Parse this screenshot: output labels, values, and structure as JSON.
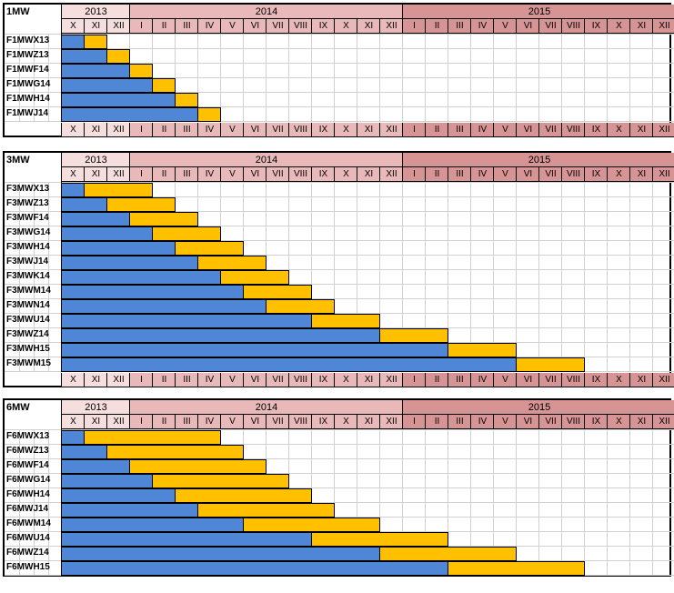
{
  "years": [
    {
      "label": "2013",
      "start": 0,
      "span": 3,
      "color": "#f6dede"
    },
    {
      "label": "2014",
      "start": 3,
      "span": 12,
      "color": "#e9b9b9"
    },
    {
      "label": "2015",
      "start": 15,
      "span": 12,
      "color": "#d79494"
    }
  ],
  "months": [
    "X",
    "XI",
    "XII",
    "I",
    "II",
    "III",
    "IV",
    "V",
    "VI",
    "VII",
    "VIII",
    "IX",
    "X",
    "XI",
    "XII",
    "I",
    "II",
    "III",
    "IV",
    "V",
    "VI",
    "VII",
    "VIII",
    "IX",
    "X",
    "XI",
    "XII"
  ],
  "colors": {
    "blue": "#4f86d6",
    "yellow": "#ffc000",
    "grid": "#d0d0d0"
  },
  "panels": [
    {
      "title": "1MW",
      "show_bottom_header": true,
      "rows": [
        {
          "label": "F1MWX13",
          "blue_months": 1,
          "yellow_months": 1
        },
        {
          "label": "F1MWZ13",
          "blue_months": 2,
          "yellow_months": 1
        },
        {
          "label": "F1MWF14",
          "blue_months": 3,
          "yellow_months": 1
        },
        {
          "label": "F1MWG14",
          "blue_months": 4,
          "yellow_months": 1
        },
        {
          "label": "F1MWH14",
          "blue_months": 5,
          "yellow_months": 1
        },
        {
          "label": "F1MWJ14",
          "blue_months": 6,
          "yellow_months": 1
        }
      ]
    },
    {
      "title": "3MW",
      "show_bottom_header": true,
      "rows": [
        {
          "label": "F3MWX13",
          "blue_months": 1,
          "yellow_months": 3
        },
        {
          "label": "F3MWZ13",
          "blue_months": 2,
          "yellow_months": 3
        },
        {
          "label": "F3MWF14",
          "blue_months": 3,
          "yellow_months": 3
        },
        {
          "label": "F3MWG14",
          "blue_months": 4,
          "yellow_months": 3
        },
        {
          "label": "F3MWH14",
          "blue_months": 5,
          "yellow_months": 3
        },
        {
          "label": "F3MWJ14",
          "blue_months": 6,
          "yellow_months": 3
        },
        {
          "label": "F3MWK14",
          "blue_months": 7,
          "yellow_months": 3
        },
        {
          "label": "F3MWM14",
          "blue_months": 8,
          "yellow_months": 3
        },
        {
          "label": "F3MWN14",
          "blue_months": 9,
          "yellow_months": 3
        },
        {
          "label": "F3MWU14",
          "blue_months": 11,
          "yellow_months": 3
        },
        {
          "label": "F3MWZ14",
          "blue_months": 14,
          "yellow_months": 3
        },
        {
          "label": "F3MWH15",
          "blue_months": 17,
          "yellow_months": 3
        },
        {
          "label": "F3MWM15",
          "blue_months": 20,
          "yellow_months": 3
        }
      ]
    },
    {
      "title": "6MW",
      "show_bottom_header": false,
      "rows": [
        {
          "label": "F6MWX13",
          "blue_months": 1,
          "yellow_months": 6
        },
        {
          "label": "F6MWZ13",
          "blue_months": 2,
          "yellow_months": 6
        },
        {
          "label": "F6MWF14",
          "blue_months": 3,
          "yellow_months": 6
        },
        {
          "label": "F6MWG14",
          "blue_months": 4,
          "yellow_months": 6
        },
        {
          "label": "F6MWH14",
          "blue_months": 5,
          "yellow_months": 6
        },
        {
          "label": "F6MWJ14",
          "blue_months": 6,
          "yellow_months": 6
        },
        {
          "label": "F6MWM14",
          "blue_months": 8,
          "yellow_months": 6
        },
        {
          "label": "F6MWU14",
          "blue_months": 11,
          "yellow_months": 6
        },
        {
          "label": "F6MWZ14",
          "blue_months": 14,
          "yellow_months": 6
        },
        {
          "label": "F6MWH15",
          "blue_months": 17,
          "yellow_months": 6
        }
      ]
    }
  ]
}
